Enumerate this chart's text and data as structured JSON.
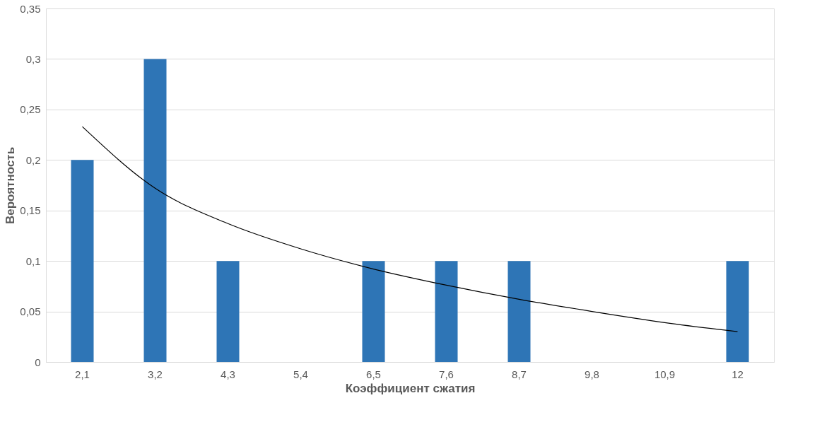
{
  "chart_data": {
    "type": "bar",
    "xlabel": "Коэффициент сжатия",
    "ylabel": "Вероятность",
    "categories": [
      "2,1",
      "3,2",
      "4,3",
      "5,4",
      "6,5",
      "7,6",
      "8,7",
      "9,8",
      "10,9",
      "12"
    ],
    "ylim": [
      0,
      0.35
    ],
    "yticks": [
      {
        "value": 0,
        "label": "0"
      },
      {
        "value": 0.05,
        "label": "0,05"
      },
      {
        "value": 0.1,
        "label": "0,1"
      },
      {
        "value": 0.15,
        "label": "0,15"
      },
      {
        "value": 0.2,
        "label": "0,2"
      },
      {
        "value": 0.25,
        "label": "0,25"
      },
      {
        "value": 0.3,
        "label": "0,3"
      },
      {
        "value": 0.35,
        "label": "0,35"
      }
    ],
    "grid": "y",
    "series": [
      {
        "color": "#2e75b6",
        "values": [
          0.2,
          0.3,
          0.1,
          0,
          0.1,
          0.1,
          0.1,
          0,
          0,
          0.1
        ]
      },
      {
        "type": "line",
        "color": "#000000",
        "x": [
          "2,1",
          "3,2",
          "4,3",
          "5,4",
          "6,5",
          "7,6",
          "8,7",
          "9,8",
          "10,9",
          "12"
        ],
        "values": [
          0.233,
          0.172,
          0.137,
          0.112,
          0.092,
          0.076,
          0.062,
          0.05,
          0.039,
          0.03
        ],
        "marker": "none",
        "line_style": "solid"
      }
    ]
  }
}
